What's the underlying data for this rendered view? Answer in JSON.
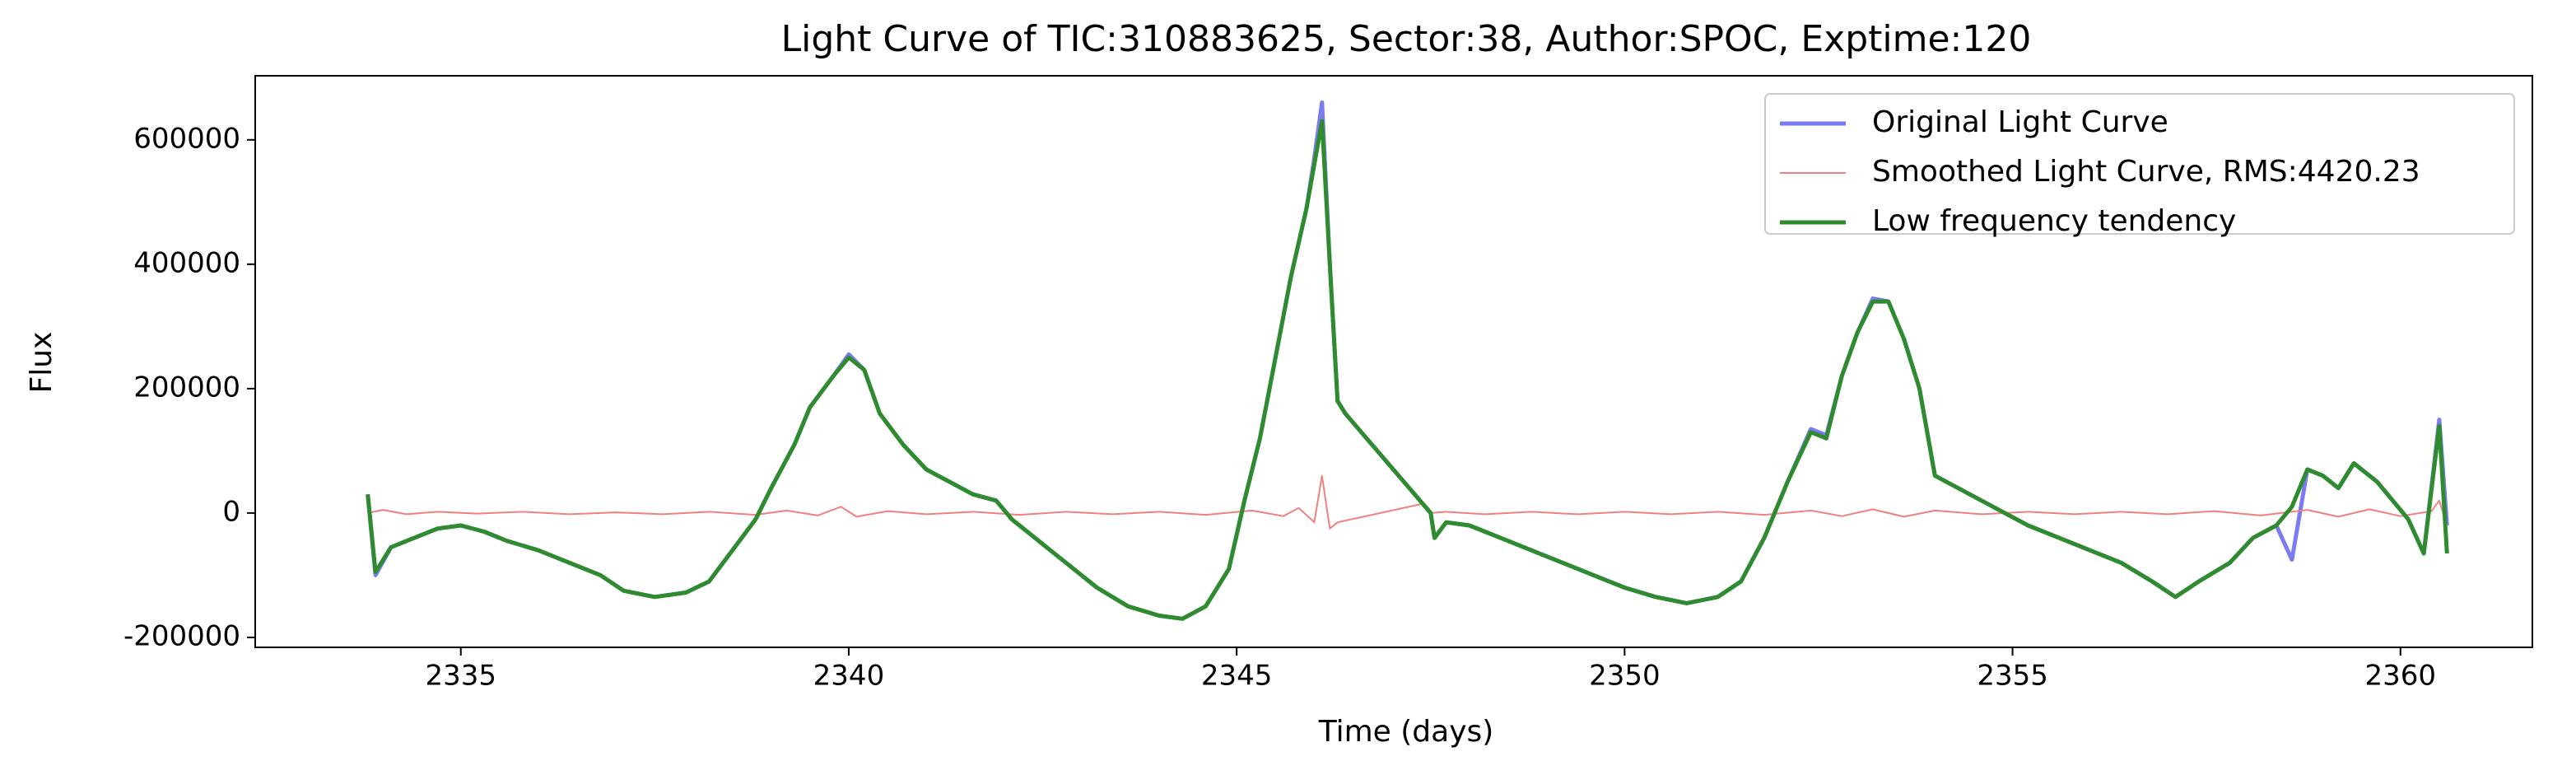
{
  "chart_data": {
    "type": "line",
    "title": "Light Curve of TIC:310883625, Sector:38, Author:SPOC, Exptime:120",
    "xlabel": "Time (days)",
    "ylabel": "Flux",
    "xlim": [
      2332.35,
      2361.7
    ],
    "ylim": [
      -216000,
      703000
    ],
    "xticks": [
      2335,
      2340,
      2345,
      2350,
      2355,
      2360
    ],
    "yticks": [
      -200000,
      0,
      200000,
      400000,
      600000
    ],
    "legend": "upper right",
    "series": [
      {
        "name": "Original Light Curve",
        "color": "#7b7bf0",
        "width": 5,
        "x": [
          2333.8,
          2333.9,
          2334.1,
          2334.4,
          2334.7,
          2335.0,
          2335.3,
          2335.6,
          2336.0,
          2336.4,
          2336.8,
          2337.1,
          2337.5,
          2337.9,
          2338.2,
          2338.5,
          2338.8,
          2339.0,
          2339.3,
          2339.5,
          2339.8,
          2340.0,
          2340.2,
          2340.4,
          2340.7,
          2341.0,
          2341.3,
          2341.6,
          2341.9,
          2342.1,
          2342.4,
          2342.8,
          2343.2,
          2343.6,
          2344.0,
          2344.3,
          2344.6,
          2344.9,
          2345.1,
          2345.3,
          2345.5,
          2345.7,
          2345.9,
          2346.0,
          2346.1,
          2346.2,
          2346.3,
          2346.4,
          2347.5,
          2347.55,
          2347.7,
          2348.0,
          2348.4,
          2348.8,
          2349.2,
          2349.6,
          2350.0,
          2350.4,
          2350.8,
          2351.2,
          2351.5,
          2351.8,
          2352.1,
          2352.4,
          2352.6,
          2352.8,
          2353.0,
          2353.2,
          2353.4,
          2353.6,
          2353.8,
          2354.0,
          2354.3,
          2354.6,
          2354.9,
          2355.2,
          2355.6,
          2356.0,
          2356.4,
          2356.8,
          2357.1,
          2357.4,
          2357.8,
          2358.1,
          2358.4,
          2358.6,
          2358.8,
          2359.0,
          2359.2,
          2359.4,
          2359.7,
          2359.9,
          2360.1,
          2360.3,
          2360.5,
          2360.6
        ],
        "values": [
          30000,
          -100000,
          -55000,
          -40000,
          -25000,
          -20000,
          -30000,
          -45000,
          -60000,
          -80000,
          -100000,
          -125000,
          -135000,
          -128000,
          -110000,
          -60000,
          -10000,
          40000,
          110000,
          170000,
          220000,
          255000,
          230000,
          160000,
          110000,
          70000,
          50000,
          30000,
          20000,
          -10000,
          -40000,
          -80000,
          -120000,
          -150000,
          -165000,
          -170000,
          -150000,
          -90000,
          20000,
          120000,
          250000,
          380000,
          490000,
          570000,
          660000,
          400000,
          180000,
          160000,
          0,
          -40000,
          -15000,
          -20000,
          -40000,
          -60000,
          -80000,
          -100000,
          -120000,
          -135000,
          -145000,
          -135000,
          -110000,
          -40000,
          50000,
          135000,
          125000,
          220000,
          290000,
          345000,
          340000,
          280000,
          200000,
          60000,
          40000,
          20000,
          0,
          -20000,
          -40000,
          -60000,
          -80000,
          -110000,
          -135000,
          -110000,
          -80000,
          -40000,
          -20000,
          -75000,
          70000,
          60000,
          40000,
          80000,
          50000,
          20000,
          -10000,
          -65000,
          150000,
          -20000
        ]
      },
      {
        "name": "Smoothed Light Curve, RMS:4420.23",
        "color": "#f08080",
        "width": 2,
        "x": [
          2333.8,
          2334.0,
          2334.3,
          2334.7,
          2335.2,
          2335.8,
          2336.4,
          2337.0,
          2337.6,
          2338.2,
          2338.8,
          2339.2,
          2339.6,
          2339.9,
          2340.1,
          2340.5,
          2341.0,
          2341.6,
          2342.2,
          2342.8,
          2343.4,
          2344.0,
          2344.6,
          2345.2,
          2345.6,
          2345.8,
          2346.0,
          2346.1,
          2346.2,
          2346.3,
          2347.4,
          2347.5,
          2347.7,
          2348.2,
          2348.8,
          2349.4,
          2350.0,
          2350.6,
          2351.2,
          2351.8,
          2352.4,
          2352.8,
          2353.2,
          2353.6,
          2354.0,
          2354.6,
          2355.2,
          2355.8,
          2356.4,
          2357.0,
          2357.6,
          2358.2,
          2358.8,
          2359.2,
          2359.6,
          2360.0,
          2360.4,
          2360.5,
          2360.6
        ],
        "values": [
          0,
          5000,
          -2000,
          2000,
          -1000,
          2000,
          -2000,
          1000,
          -2000,
          2000,
          -3000,
          4000,
          -4000,
          10000,
          -6000,
          3000,
          -2000,
          2000,
          -3000,
          2000,
          -2000,
          2000,
          -3000,
          4000,
          -5000,
          8000,
          -15000,
          60000,
          -25000,
          -15000,
          15000,
          0,
          2000,
          -2000,
          2000,
          -2000,
          2000,
          -2000,
          2000,
          -3000,
          4000,
          -5000,
          6000,
          -6000,
          4000,
          -2000,
          2000,
          -2000,
          2000,
          -2000,
          3000,
          -4000,
          5000,
          -6000,
          6000,
          -5000,
          3000,
          20000,
          -20000
        ]
      },
      {
        "name": "Low frequency tendency",
        "color": "#2e8b2e",
        "width": 5,
        "x": [
          2333.8,
          2333.9,
          2334.1,
          2334.4,
          2334.7,
          2335.0,
          2335.3,
          2335.6,
          2336.0,
          2336.4,
          2336.8,
          2337.1,
          2337.5,
          2337.9,
          2338.2,
          2338.5,
          2338.8,
          2339.0,
          2339.3,
          2339.5,
          2339.8,
          2340.0,
          2340.2,
          2340.4,
          2340.7,
          2341.0,
          2341.3,
          2341.6,
          2341.9,
          2342.1,
          2342.4,
          2342.8,
          2343.2,
          2343.6,
          2344.0,
          2344.3,
          2344.6,
          2344.9,
          2345.1,
          2345.3,
          2345.5,
          2345.7,
          2345.9,
          2346.0,
          2346.1,
          2346.2,
          2346.3,
          2346.4,
          2347.5,
          2347.55,
          2347.7,
          2348.0,
          2348.4,
          2348.8,
          2349.2,
          2349.6,
          2350.0,
          2350.4,
          2350.8,
          2351.2,
          2351.5,
          2351.8,
          2352.1,
          2352.4,
          2352.6,
          2352.8,
          2353.0,
          2353.2,
          2353.4,
          2353.6,
          2353.8,
          2354.0,
          2354.3,
          2354.6,
          2354.9,
          2355.2,
          2355.6,
          2356.0,
          2356.4,
          2356.8,
          2357.1,
          2357.4,
          2357.8,
          2358.1,
          2358.4,
          2358.6,
          2358.8,
          2359.0,
          2359.2,
          2359.4,
          2359.7,
          2359.9,
          2360.1,
          2360.3,
          2360.5,
          2360.6
        ],
        "values": [
          30000,
          -95000,
          -55000,
          -40000,
          -25000,
          -20000,
          -30000,
          -45000,
          -60000,
          -80000,
          -100000,
          -125000,
          -135000,
          -128000,
          -110000,
          -60000,
          -10000,
          40000,
          110000,
          170000,
          220000,
          250000,
          230000,
          160000,
          110000,
          70000,
          50000,
          30000,
          20000,
          -10000,
          -40000,
          -80000,
          -120000,
          -150000,
          -165000,
          -170000,
          -150000,
          -90000,
          20000,
          120000,
          250000,
          380000,
          490000,
          560000,
          630000,
          400000,
          180000,
          160000,
          0,
          -40000,
          -15000,
          -20000,
          -40000,
          -60000,
          -80000,
          -100000,
          -120000,
          -135000,
          -145000,
          -135000,
          -110000,
          -40000,
          50000,
          130000,
          120000,
          220000,
          290000,
          340000,
          340000,
          280000,
          200000,
          60000,
          40000,
          20000,
          0,
          -20000,
          -40000,
          -60000,
          -80000,
          -110000,
          -135000,
          -110000,
          -80000,
          -40000,
          -20000,
          10000,
          70000,
          60000,
          40000,
          80000,
          50000,
          20000,
          -10000,
          -65000,
          140000,
          -65000
        ]
      }
    ]
  }
}
